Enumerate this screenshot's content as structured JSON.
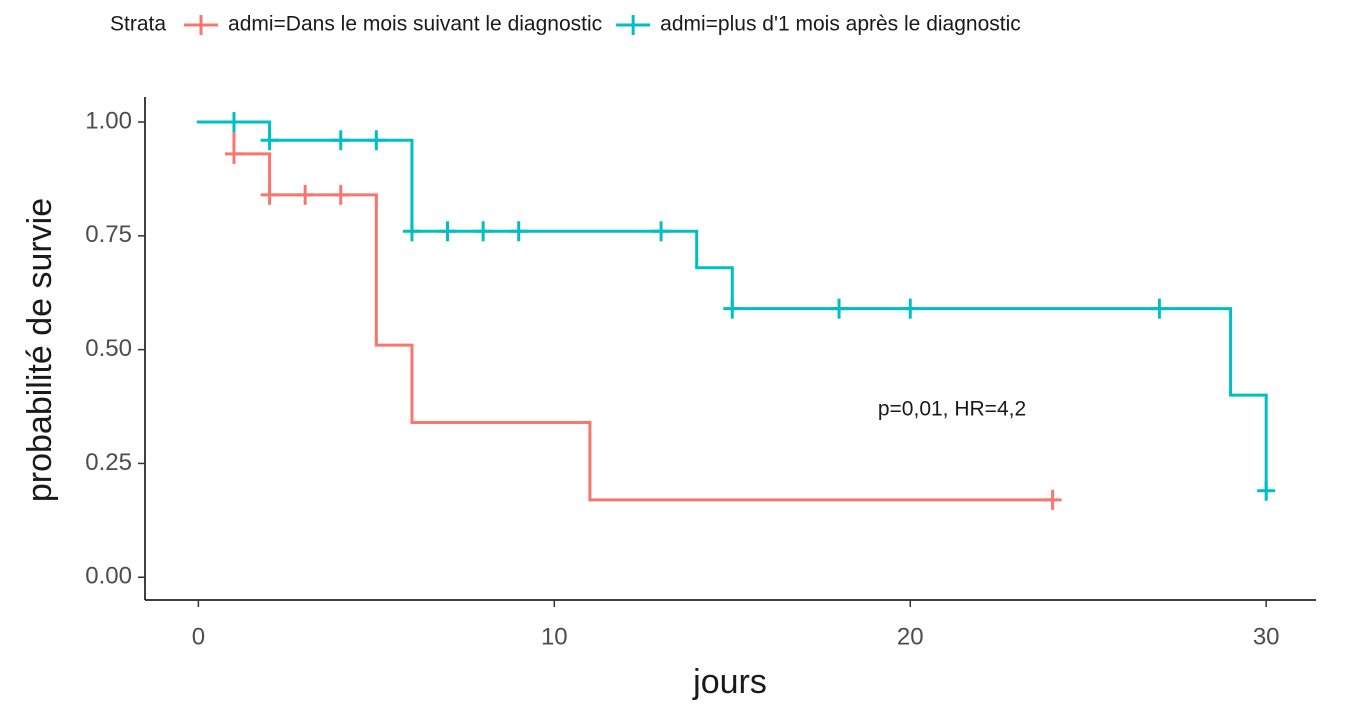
{
  "chart_data": {
    "type": "survival",
    "legend_title": "Strata",
    "x_label": "jours",
    "y_label": "probabilité de survie",
    "annotation": "p=0,01, HR=4,2",
    "xlim": [
      -1.5,
      31.4
    ],
    "ylim": [
      -0.05,
      1.055
    ],
    "xticks": [
      0,
      10,
      20,
      30
    ],
    "yticks": [
      {
        "value": 0,
        "label": "0.00"
      },
      {
        "value": 0.25,
        "label": "0.25"
      },
      {
        "value": 0.5,
        "label": "0.50"
      },
      {
        "value": 0.75,
        "label": "0.75"
      },
      {
        "value": 1,
        "label": "1.00"
      }
    ],
    "legend_position": "top",
    "series": [
      {
        "name": "admi=Dans le mois suivant le diagnostic",
        "color": "#F8766D",
        "x": [
          0,
          1,
          2,
          5,
          6,
          11,
          24
        ],
        "values": [
          1,
          0.93,
          0.84,
          0.51,
          0.34,
          0.17,
          0.17
        ],
        "censored": {
          "x": [
            1,
            2,
            3,
            4,
            24
          ],
          "values": [
            0.93,
            0.84,
            0.84,
            0.84,
            0.17
          ]
        }
      },
      {
        "name": "admi=plus d'1 mois après le diagnostic",
        "color": "#00BFC4",
        "x": [
          0,
          2,
          6,
          14,
          15,
          29,
          30
        ],
        "values": [
          1,
          0.96,
          0.76,
          0.68,
          0.59,
          0.4,
          0.19
        ],
        "censored": {
          "x": [
            1,
            2,
            4,
            5,
            6,
            7,
            8,
            9,
            13,
            15,
            18,
            20,
            27,
            30
          ],
          "values": [
            1,
            0.96,
            0.96,
            0.96,
            0.76,
            0.76,
            0.76,
            0.76,
            0.76,
            0.59,
            0.59,
            0.59,
            0.59,
            0.19
          ]
        }
      }
    ]
  }
}
